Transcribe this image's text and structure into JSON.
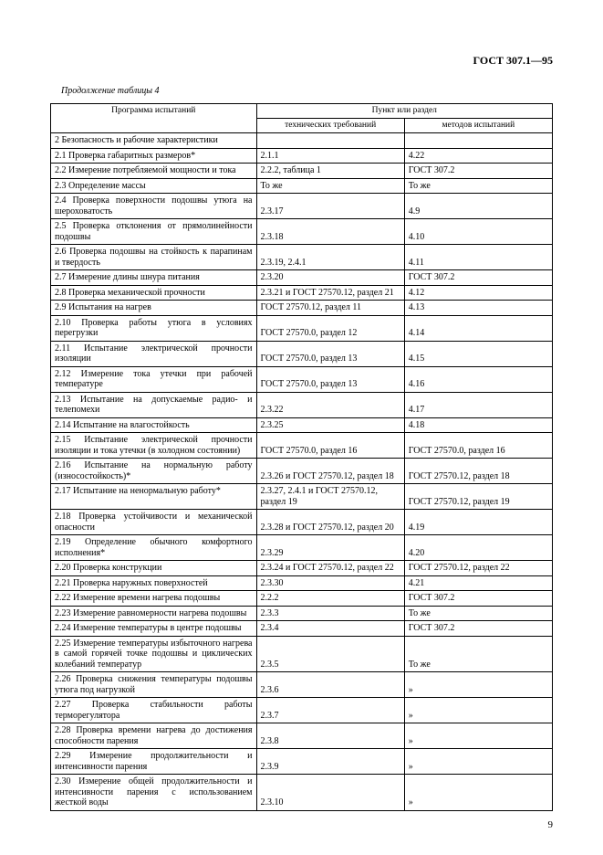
{
  "header": {
    "docNumber": "ГОСТ 307.1—95"
  },
  "caption": "Продолжение таблицы 4",
  "tableHeader": {
    "col1": "Программа испытаний",
    "group": "Пункт или раздел",
    "sub1": "технических требований",
    "sub2": "методов испытаний"
  },
  "rows": [
    {
      "c1": "2 Безопасность и рабочие характеристики",
      "c2": "",
      "c3": ""
    },
    {
      "c1": "2.1 Проверка габаритных размеров*",
      "c2": "2.1.1",
      "c3": "4.22"
    },
    {
      "c1": "2.2 Измерение потребляемой мощности и тока",
      "c2": "2.2.2, таблица 1",
      "c3": "ГОСТ 307.2"
    },
    {
      "c1": "2.3 Определение массы",
      "c2": "То же",
      "c3": "То же"
    },
    {
      "c1": "2.4 Проверка поверхности подошвы утюга на шероховатость",
      "c2": "2.3.17",
      "c3": "4.9"
    },
    {
      "c1": "2.5 Проверка отклонения от прямолинейности подошвы",
      "c2": "2.3.18",
      "c3": "4.10"
    },
    {
      "c1": "2.6 Проверка подошвы на стойкость к парапинам и твердость",
      "c2": "2.3.19, 2.4.1",
      "c3": "4.11"
    },
    {
      "c1": "2.7 Измерение длины шнура питания",
      "c2": "2.3.20",
      "c3": "ГОСТ 307.2"
    },
    {
      "c1": "2.8 Проверка механической прочности",
      "c2": "2.3.21 и ГОСТ 27570.12, раздел 21",
      "c3": "4.12"
    },
    {
      "c1": "2.9 Испытания на нагрев",
      "c2": "ГОСТ 27570.12, раздел 11",
      "c3": "4.13"
    },
    {
      "c1": "2.10 Проверка работы утюга в условиях перегрузки",
      "c2": "ГОСТ 27570.0, раздел 12",
      "c3": "4.14"
    },
    {
      "c1": "2.11 Испытание электрической прочности изоляции",
      "c2": "ГОСТ 27570.0, раздел 13",
      "c3": "4.15"
    },
    {
      "c1": "2.12 Измерение тока утечки при рабочей температуре",
      "c2": "ГОСТ 27570.0, раздел 13",
      "c3": "4.16"
    },
    {
      "c1": "2.13 Испытание на допускаемые радио- и телепомехи",
      "c2": "2.3.22",
      "c3": "4.17"
    },
    {
      "c1": "2.14 Испытание на влагостойкость",
      "c2": "2.3.25",
      "c3": "4.18"
    },
    {
      "c1": "2.15 Испытание электрической прочности изоляции и тока утечки (в холодном состоянии)",
      "c2": "ГОСТ 27570.0, раздел 16",
      "c3": "ГОСТ 27570.0, раздел 16"
    },
    {
      "c1": "2.16 Испытание на нормальную работу (износостойкость)*",
      "c2": "2.3.26 и ГОСТ 27570.12, раздел 18",
      "c3": "ГОСТ 27570.12, раздел 18"
    },
    {
      "c1": "2.17 Испытание на ненормальную работу*",
      "c2": "2.3.27, 2.4.1 и ГОСТ 27570.12, раздел 19",
      "c3": "ГОСТ 27570.12, раздел 19"
    },
    {
      "c1": "2.18 Проверка устойчивости и механической опасности",
      "c2": "2.3.28 и ГОСТ 27570.12, раздел 20",
      "c3": "4.19"
    },
    {
      "c1": "2.19 Определение обычного комфортного исполнения*",
      "c2": "2.3.29",
      "c3": "4.20"
    },
    {
      "c1": "2.20 Проверка конструкции",
      "c2": "2.3.24 и ГОСТ 27570.12, раздел 22",
      "c3": "ГОСТ 27570.12, раздел 22"
    },
    {
      "c1": "2.21 Проверка наружных поверхностей",
      "c2": "2.3.30",
      "c3": "4.21"
    },
    {
      "c1": "2.22 Измерение времени нагрева подошвы",
      "c2": "2.2.2",
      "c3": "ГОСТ 307.2"
    },
    {
      "c1": "2.23 Измерение равномерности нагрева подошвы",
      "c2": "2.3.3",
      "c3": "То же"
    },
    {
      "c1": "2.24 Измерение температуры в центре подошвы",
      "c2": "2.3.4",
      "c3": "ГОСТ 307.2"
    },
    {
      "c1": "2.25 Измерение температуры избыточного нагрева в самой горячей точке подошвы и циклических колебаний температур",
      "c2": "2.3.5",
      "c3": "То же"
    },
    {
      "c1": "2.26 Проверка снижения температуры подошвы утюга под нагрузкой",
      "c2": "2.3.6",
      "c3": "»"
    },
    {
      "c1": "2.27 Проверка стабильности работы терморегулятора",
      "c2": "2.3.7",
      "c3": "»"
    },
    {
      "c1": "2.28 Проверка времени нагрева до достижения способности парения",
      "c2": "2.3.8",
      "c3": "»"
    },
    {
      "c1": "2.29 Измерение продолжительности и интенсивности парения",
      "c2": "2.3.9",
      "c3": "»"
    },
    {
      "c1": "2.30 Измерение общей продолжительности и интенсивности парения с использованием жесткой воды",
      "c2": "2.3.10",
      "c3": "»"
    }
  ],
  "pageNumber": "9"
}
